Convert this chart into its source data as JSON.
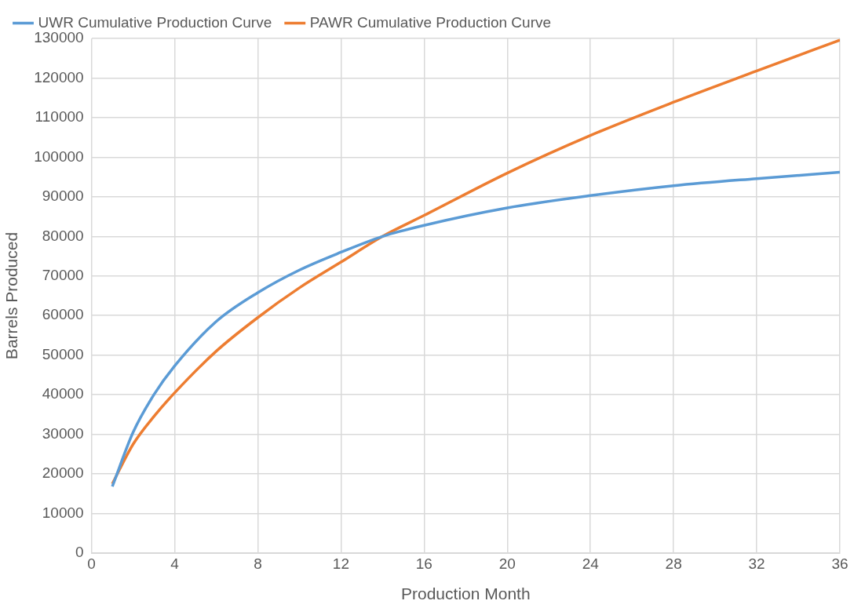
{
  "chart_data": {
    "type": "line",
    "xlabel": "Production Month",
    "ylabel": "Barrels Produced",
    "xlim": [
      0,
      36
    ],
    "xticks": [
      0,
      4,
      8,
      12,
      16,
      20,
      24,
      28,
      32,
      36
    ],
    "ylim": [
      0,
      130000
    ],
    "yticks": [
      0,
      10000,
      20000,
      30000,
      40000,
      50000,
      60000,
      70000,
      80000,
      90000,
      100000,
      110000,
      120000,
      130000
    ],
    "grid": true,
    "legend": "top",
    "marker": "none",
    "line_style": "solid",
    "series": [
      {
        "name": "UWR Cumulative Production Curve",
        "color": "#5b9bd5",
        "x": [
          1,
          2,
          3,
          4,
          6,
          8,
          10,
          12,
          14,
          16,
          20,
          24,
          28,
          32,
          36
        ],
        "values": [
          16800,
          30500,
          40000,
          47300,
          58500,
          65800,
          71500,
          76000,
          80000,
          82800,
          87200,
          90300,
          92800,
          94600,
          96200
        ]
      },
      {
        "name": "PAWR Cumulative Production Curve",
        "color": "#ed7d31",
        "x": [
          1,
          2,
          3,
          4,
          6,
          8,
          10,
          12,
          14,
          16,
          20,
          24,
          28,
          32,
          36
        ],
        "values": [
          17500,
          27500,
          34500,
          40500,
          51000,
          59500,
          67000,
          73500,
          80000,
          85300,
          96000,
          105500,
          113900,
          121800,
          129600
        ]
      }
    ]
  }
}
